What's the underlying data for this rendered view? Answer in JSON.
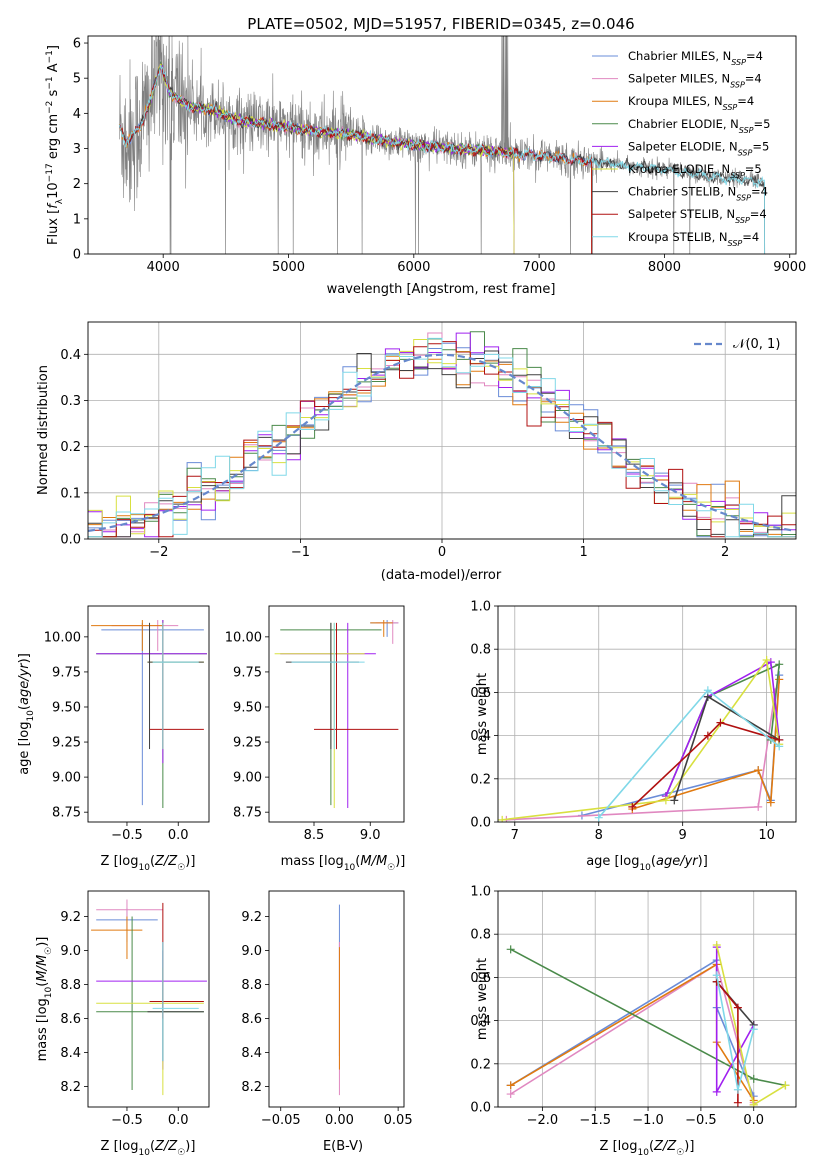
{
  "figure_title": "PLATE=0502, MJD=51957, FIBERID=0345, z=0.046",
  "colors": {
    "data": "#808080",
    "models": [
      "#6a8cd8",
      "#e088c0",
      "#e07a10",
      "#4a8a4a",
      "#a020f0",
      "#d8e040",
      "#404040",
      "#b01010",
      "#80d8e8"
    ],
    "normal": "#6688cc"
  },
  "chart_data": [
    {
      "id": "spectrum",
      "type": "line",
      "title": "PLATE=0502, MJD=51957, FIBERID=0345, z=0.046",
      "xlabel": "wavelength [Angstrom, rest frame]",
      "ylabel": "Flux [fλ10⁻¹⁷ erg cm⁻² s⁻¹ A⁻¹]",
      "xlim": [
        3400,
        9050
      ],
      "ylim": [
        0,
        6.2
      ],
      "xticks": [
        4000,
        5000,
        6000,
        7000,
        8000,
        9000
      ],
      "yticks": [
        0,
        1,
        2,
        3,
        4,
        5,
        6
      ],
      "grid": false,
      "legend_position": "top-right",
      "continuum_knots": [
        [
          3650,
          3.6
        ],
        [
          3700,
          3.2
        ],
        [
          3800,
          3.5
        ],
        [
          3900,
          4.4
        ],
        [
          3980,
          5.4
        ],
        [
          4050,
          4.6
        ],
        [
          4200,
          4.2
        ],
        [
          4400,
          4.1
        ],
        [
          4600,
          3.8
        ],
        [
          4800,
          3.7
        ],
        [
          5000,
          3.6
        ],
        [
          5200,
          3.5
        ],
        [
          5500,
          3.4
        ],
        [
          5800,
          3.2
        ],
        [
          6000,
          3.1
        ],
        [
          6500,
          2.95
        ],
        [
          7000,
          2.8
        ],
        [
          7500,
          2.6
        ],
        [
          8000,
          2.4
        ],
        [
          8500,
          2.15
        ],
        [
          8800,
          2.05
        ]
      ],
      "series": [
        {
          "name": "Chabrier MILES, N_SSP=4",
          "label_main": "Chabrier MILES, N",
          "label_sub": "SSP",
          "label_end": "=4",
          "range": [
            3650,
            7420
          ]
        },
        {
          "name": "Salpeter MILES, N_SSP=4",
          "label_main": "Salpeter MILES, N",
          "label_sub": "SSP",
          "label_end": "=4",
          "range": [
            3650,
            7420
          ]
        },
        {
          "name": "Kroupa MILES, N_SSP=4",
          "label_main": "Kroupa MILES, N",
          "label_sub": "SSP",
          "label_end": "=4",
          "range": [
            3650,
            7420
          ]
        },
        {
          "name": "Chabrier ELODIE, N_SSP=5",
          "label_main": "Chabrier ELODIE, N",
          "label_sub": "SSP",
          "label_end": "=5",
          "range": [
            3880,
            6800
          ]
        },
        {
          "name": "Salpeter ELODIE, N_SSP=5",
          "label_main": "Salpeter ELODIE, N",
          "label_sub": "SSP",
          "label_end": "=5",
          "range": [
            3880,
            6800
          ]
        },
        {
          "name": "Kroupa ELODIE, N_SSP=5",
          "label_main": "Kroupa ELODIE, N",
          "label_sub": "SSP",
          "label_end": "=5",
          "range": [
            3880,
            6800
          ]
        },
        {
          "name": "Chabrier STELIB, N_SSP=4",
          "label_main": "Chabrier STELIB, N",
          "label_sub": "SSP",
          "label_end": "=4",
          "range": [
            3650,
            8800
          ]
        },
        {
          "name": "Salpeter STELIB, N_SSP=4",
          "label_main": "Salpeter STELIB, N",
          "label_sub": "SSP",
          "label_end": "=4",
          "range": [
            3650,
            7420
          ]
        },
        {
          "name": "Kroupa STELIB, N_SSP=4",
          "label_main": "Kroupa STELIB, N",
          "label_sub": "SSP",
          "label_end": "=4",
          "range": [
            3650,
            8800
          ]
        }
      ]
    },
    {
      "id": "residuals",
      "type": "histogram",
      "xlabel": "(data-model)/error",
      "ylabel": "Normed distribution",
      "xlim": [
        -2.5,
        2.5
      ],
      "ylim": [
        0,
        0.47
      ],
      "xticks": [
        -2,
        -1,
        0,
        1,
        2
      ],
      "yticks": [
        0.0,
        0.1,
        0.2,
        0.3,
        0.4
      ],
      "grid": true,
      "legend_position": "top-right",
      "legend_label": "𝒩(0, 1)",
      "bin_width": 0.1
    },
    {
      "id": "age_vs_Z",
      "type": "errorbar",
      "xlabel": "Z [log10(Z/Z☉)]",
      "ylabel": "age  [log10(age/yr)]",
      "xlim": [
        -0.88,
        0.3
      ],
      "ylim": [
        8.68,
        10.22
      ],
      "xticks": [
        -0.5,
        0.0
      ],
      "yticks": [
        8.75,
        9.0,
        9.25,
        9.5,
        9.75,
        10.0
      ],
      "points": [
        {
          "x": -0.35,
          "y": 10.05,
          "xlo": -0.75,
          "xhi": 0.25,
          "ylo": 8.8,
          "yhi": 10.1
        },
        {
          "x": -0.2,
          "y": 10.08,
          "xlo": -0.65,
          "xhi": 0.0,
          "ylo": 9.9,
          "yhi": 10.12
        },
        {
          "x": -0.35,
          "y": 10.08,
          "xlo": -0.85,
          "xhi": -0.15,
          "ylo": 9.9,
          "yhi": 10.12
        },
        {
          "x": -0.15,
          "y": 9.88,
          "xlo": -0.8,
          "xhi": 0.28,
          "ylo": 8.78,
          "yhi": 10.12
        },
        {
          "x": -0.15,
          "y": 9.88,
          "xlo": -0.8,
          "xhi": 0.28,
          "ylo": 9.1,
          "yhi": 10.12
        },
        {
          "x": -0.15,
          "y": 9.82,
          "xlo": -0.3,
          "xhi": 0.25,
          "ylo": 9.2,
          "yhi": 10.1
        },
        {
          "x": -0.28,
          "y": 9.82,
          "xlo": -0.3,
          "xhi": 0.25,
          "ylo": 9.2,
          "yhi": 10.1
        },
        {
          "x": -0.15,
          "y": 9.34,
          "xlo": -0.28,
          "xhi": 0.25,
          "ylo": 9.2,
          "yhi": 10.1
        },
        {
          "x": -0.15,
          "y": 9.82,
          "xlo": -0.25,
          "xhi": 0.2,
          "ylo": 9.2,
          "yhi": 10.1
        }
      ]
    },
    {
      "id": "age_vs_mass",
      "type": "errorbar",
      "xlabel": "mass [log10(M/M☉)]",
      "ylabel": "",
      "xlim": [
        8.1,
        9.3
      ],
      "ylim": [
        8.68,
        10.22
      ],
      "xticks": [
        8.5,
        9.0
      ],
      "yticks": [
        8.75,
        9.0,
        9.25,
        9.5,
        9.75,
        10.0
      ],
      "points": [
        {
          "x": 9.15,
          "y": 10.1,
          "xlo": 9.0,
          "xhi": 9.25,
          "ylo": 10.0,
          "yhi": 10.12
        },
        {
          "x": 9.2,
          "y": 10.1,
          "xlo": 9.05,
          "xhi": 9.25,
          "ylo": 9.95,
          "yhi": 10.12
        },
        {
          "x": 9.12,
          "y": 10.1,
          "xlo": 9.0,
          "xhi": 9.2,
          "ylo": 10.0,
          "yhi": 10.12
        },
        {
          "x": 8.65,
          "y": 10.05,
          "xlo": 8.2,
          "xhi": 9.1,
          "ylo": 8.8,
          "yhi": 10.1
        },
        {
          "x": 8.8,
          "y": 9.88,
          "xlo": 8.2,
          "xhi": 9.05,
          "ylo": 8.78,
          "yhi": 10.1
        },
        {
          "x": 8.68,
          "y": 9.88,
          "xlo": 8.15,
          "xhi": 8.95,
          "ylo": 8.78,
          "yhi": 10.1
        },
        {
          "x": 8.65,
          "y": 9.82,
          "xlo": 8.25,
          "xhi": 8.9,
          "ylo": 9.2,
          "yhi": 10.1
        },
        {
          "x": 8.7,
          "y": 9.34,
          "xlo": 8.5,
          "xhi": 9.25,
          "ylo": 9.2,
          "yhi": 10.1
        },
        {
          "x": 8.68,
          "y": 9.82,
          "xlo": 8.3,
          "xhi": 8.95,
          "ylo": 9.2,
          "yhi": 10.1
        }
      ]
    },
    {
      "id": "massweight_vs_age",
      "type": "line",
      "xlabel": "age  [log10(age/yr)]",
      "ylabel": "mass weight",
      "xlim": [
        6.8,
        10.35
      ],
      "ylim": [
        0,
        1
      ],
      "xticks": [
        7,
        8,
        9,
        10
      ],
      "yticks": [
        0.0,
        0.2,
        0.4,
        0.6,
        0.8,
        1.0
      ],
      "grid": true,
      "series": [
        {
          "x": [
            7.8,
            9.9,
            10.05,
            10.15
          ],
          "y": [
            0.03,
            0.24,
            0.1,
            0.68
          ]
        },
        {
          "x": [
            6.9,
            9.9,
            10.1,
            10.15
          ],
          "y": [
            0.01,
            0.07,
            0.6,
            0.66
          ]
        },
        {
          "x": [
            8.4,
            9.9,
            10.05,
            10.15
          ],
          "y": [
            0.06,
            0.24,
            0.09,
            0.66
          ]
        },
        {
          "x": [
            8.8,
            9.3,
            10.15,
            10.05
          ],
          "y": [
            0.12,
            0.58,
            0.73,
            0.38
          ]
        },
        {
          "x": [
            8.8,
            9.3,
            10.05,
            10.15
          ],
          "y": [
            0.12,
            0.58,
            0.74,
            0.38
          ]
        },
        {
          "x": [
            6.85,
            8.8,
            10.0,
            10.15
          ],
          "y": [
            0.01,
            0.1,
            0.75,
            0.36
          ]
        },
        {
          "x": [
            8.9,
            9.3,
            10.15
          ],
          "y": [
            0.1,
            0.58,
            0.38
          ]
        },
        {
          "x": [
            8.4,
            9.3,
            9.45,
            10.15
          ],
          "y": [
            0.07,
            0.4,
            0.46,
            0.38
          ]
        },
        {
          "x": [
            8.0,
            9.3,
            10.15
          ],
          "y": [
            0.02,
            0.61,
            0.35
          ]
        }
      ]
    },
    {
      "id": "mass_vs_Z",
      "type": "errorbar",
      "xlabel": "Z [log10(Z/Z☉)]",
      "ylabel": "mass [log10(M/M☉)]",
      "xlim": [
        -0.88,
        0.3
      ],
      "ylim": [
        8.08,
        9.35
      ],
      "xticks": [
        -0.5,
        0.0
      ],
      "yticks": [
        8.2,
        8.4,
        8.6,
        8.8,
        9.0,
        9.2
      ],
      "points": [
        {
          "x": -0.5,
          "y": 9.18,
          "xlo": -0.8,
          "xhi": -0.2,
          "ylo": 9.05,
          "yhi": 9.25
        },
        {
          "x": -0.5,
          "y": 9.24,
          "xlo": -0.8,
          "xhi": -0.15,
          "ylo": 9.12,
          "yhi": 9.3
        },
        {
          "x": -0.5,
          "y": 9.12,
          "xlo": -0.85,
          "xhi": -0.35,
          "ylo": 8.95,
          "yhi": 9.2
        },
        {
          "x": -0.45,
          "y": 8.64,
          "xlo": -0.8,
          "xhi": 0.25,
          "ylo": 8.18,
          "yhi": 9.2
        },
        {
          "x": -0.15,
          "y": 8.82,
          "xlo": -0.8,
          "xhi": 0.28,
          "ylo": 8.3,
          "yhi": 9.0
        },
        {
          "x": -0.15,
          "y": 8.69,
          "xlo": -0.8,
          "xhi": 0.25,
          "ylo": 8.15,
          "yhi": 8.9
        },
        {
          "x": -0.15,
          "y": 8.64,
          "xlo": -0.3,
          "xhi": 0.25,
          "ylo": 8.35,
          "yhi": 9.05
        },
        {
          "x": -0.15,
          "y": 8.7,
          "xlo": -0.28,
          "xhi": 0.25,
          "ylo": 8.6,
          "yhi": 9.28
        },
        {
          "x": -0.15,
          "y": 8.66,
          "xlo": -0.25,
          "xhi": 0.2,
          "ylo": 8.35,
          "yhi": 9.05
        }
      ]
    },
    {
      "id": "mass_vs_EBV",
      "type": "errorbar",
      "xlabel": "E(B-V)",
      "ylabel": "",
      "xlim": [
        -0.06,
        0.055
      ],
      "ylim": [
        8.08,
        9.35
      ],
      "xticks": [
        -0.05,
        0.0,
        0.05
      ],
      "yticks": [
        8.2,
        8.4,
        8.6,
        8.8,
        9.0,
        9.2
      ],
      "points": [
        {
          "x": 0.0,
          "y": 9.02,
          "xlo": 0.0,
          "xhi": 0.0,
          "ylo": 8.38,
          "yhi": 9.27
        },
        {
          "x": 0.0,
          "y": 8.36,
          "xlo": 0.0,
          "xhi": 0.0,
          "ylo": 8.15,
          "yhi": 9.05
        },
        {
          "x": 0.0,
          "y": 8.64,
          "xlo": 0.0,
          "xhi": 0.0,
          "ylo": 8.3,
          "yhi": 9.02
        }
      ]
    },
    {
      "id": "massweight_vs_Z",
      "type": "line",
      "xlabel": "Z [log10(Z/Z☉)]",
      "ylabel": "mass weight",
      "xlim": [
        -2.42,
        0.4
      ],
      "ylim": [
        0,
        1
      ],
      "xticks": [
        -2.0,
        -1.5,
        -1.0,
        -0.5,
        0.0
      ],
      "yticks": [
        0.0,
        0.2,
        0.4,
        0.6,
        0.8,
        1.0
      ],
      "grid": true,
      "series": [
        {
          "x": [
            -2.3,
            -0.35,
            -0.35,
            0.0
          ],
          "y": [
            0.1,
            0.68,
            0.46,
            0.05
          ]
        },
        {
          "x": [
            -2.3,
            -0.35,
            0.0,
            0.0
          ],
          "y": [
            0.06,
            0.66,
            0.02,
            0.01
          ]
        },
        {
          "x": [
            -2.3,
            -0.35,
            -0.35,
            0.0
          ],
          "y": [
            0.1,
            0.66,
            0.3,
            0.03
          ]
        },
        {
          "x": [
            -2.3,
            0.0,
            0.3
          ],
          "y": [
            0.73,
            0.13,
            0.1
          ]
        },
        {
          "x": [
            -0.35,
            -0.35,
            0.0
          ],
          "y": [
            0.74,
            0.07,
            0.38
          ]
        },
        {
          "x": [
            -0.35,
            0.0,
            0.3
          ],
          "y": [
            0.75,
            0.01,
            0.1
          ]
        },
        {
          "x": [
            -0.35,
            0.0
          ],
          "y": [
            0.58,
            0.38
          ]
        },
        {
          "x": [
            -0.35,
            -0.15,
            -0.15
          ],
          "y": [
            0.58,
            0.46,
            0.02
          ]
        },
        {
          "x": [
            -0.35,
            -0.15,
            0.0
          ],
          "y": [
            0.61,
            0.08,
            0.36
          ]
        }
      ]
    }
  ]
}
